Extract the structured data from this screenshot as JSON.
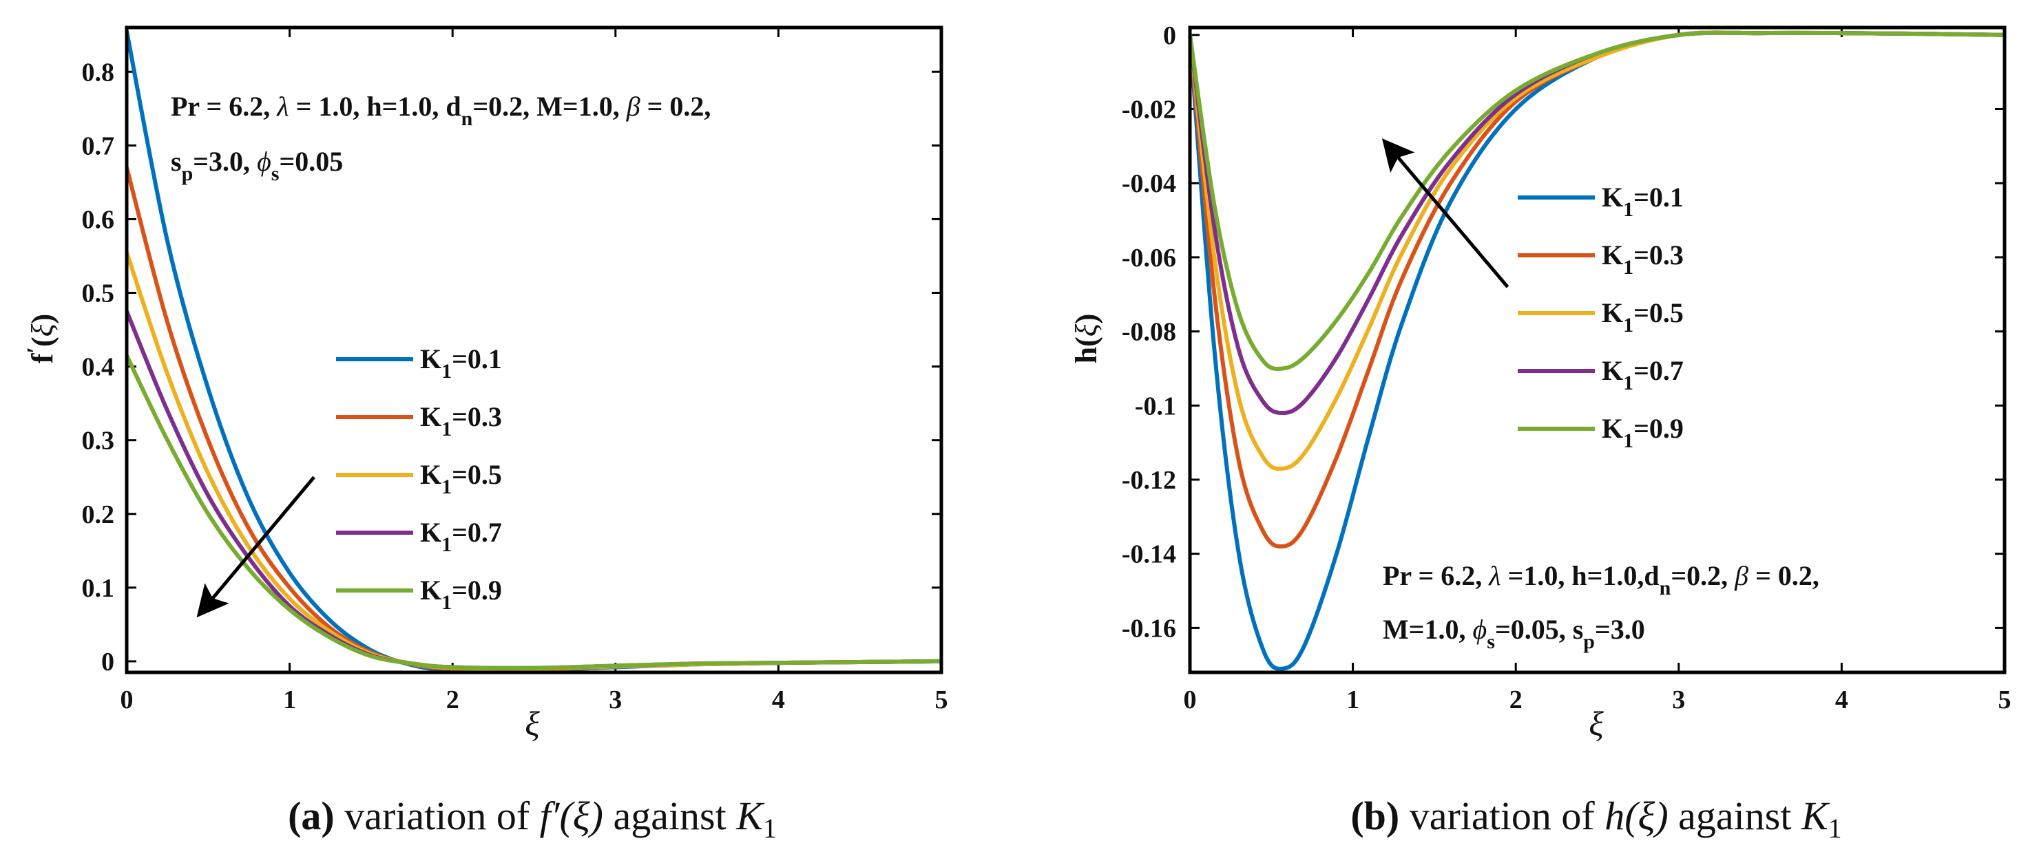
{
  "chart_data": [
    {
      "type": "line",
      "panel": "a",
      "title": "",
      "ylabel": "f'(ξ)",
      "xlabel": "ξ",
      "xlim": [
        0,
        5
      ],
      "ylim": [
        -0.015,
        0.86
      ],
      "xticks": [
        "0",
        "1",
        "2",
        "3",
        "4",
        "5"
      ],
      "yticks": [
        "0",
        "0.1",
        "0.2",
        "0.3",
        "0.4",
        "0.5",
        "0.6",
        "0.7",
        "0.8"
      ],
      "legend_position": "center",
      "legend_prefix": "K",
      "legend_subscript": "1",
      "series": [
        {
          "name": "K1=0.1",
          "value_label": "=0.1",
          "color": "#0072BD",
          "x": [
            0,
            0.25,
            0.5,
            0.75,
            1.0,
            1.25,
            1.5,
            1.75,
            2.0,
            2.5,
            3.0,
            3.5,
            4.0,
            4.5,
            5.0
          ],
          "y": [
            0.855,
            0.57,
            0.37,
            0.22,
            0.12,
            0.055,
            0.015,
            -0.005,
            -0.012,
            -0.012,
            -0.008,
            -0.004,
            -0.002,
            -0.001,
            0
          ]
        },
        {
          "name": "K1=0.3",
          "value_label": "=0.3",
          "color": "#D95319",
          "x": [
            0,
            0.25,
            0.5,
            0.75,
            1.0,
            1.25,
            1.5,
            1.75,
            2.0,
            2.5,
            3.0,
            3.5,
            4.0,
            4.5,
            5.0
          ],
          "y": [
            0.67,
            0.46,
            0.3,
            0.18,
            0.1,
            0.045,
            0.012,
            -0.004,
            -0.01,
            -0.011,
            -0.007,
            -0.004,
            -0.002,
            -0.001,
            0
          ]
        },
        {
          "name": "K1=0.5",
          "value_label": "=0.5",
          "color": "#EDB120",
          "x": [
            0,
            0.25,
            0.5,
            0.75,
            1.0,
            1.25,
            1.5,
            1.75,
            2.0,
            2.5,
            3.0,
            3.5,
            4.0,
            4.5,
            5.0
          ],
          "y": [
            0.555,
            0.39,
            0.255,
            0.155,
            0.085,
            0.04,
            0.01,
            -0.003,
            -0.009,
            -0.01,
            -0.007,
            -0.004,
            -0.002,
            -0.001,
            0
          ]
        },
        {
          "name": "K1=0.7",
          "value_label": "=0.7",
          "color": "#7E2F8E",
          "x": [
            0,
            0.25,
            0.5,
            0.75,
            1.0,
            1.25,
            1.5,
            1.75,
            2.0,
            2.5,
            3.0,
            3.5,
            4.0,
            4.5,
            5.0
          ],
          "y": [
            0.475,
            0.34,
            0.225,
            0.14,
            0.075,
            0.035,
            0.008,
            -0.003,
            -0.008,
            -0.009,
            -0.006,
            -0.003,
            -0.002,
            -0.001,
            0
          ]
        },
        {
          "name": "K1=0.9",
          "value_label": "=0.9",
          "color": "#77AC30",
          "x": [
            0,
            0.25,
            0.5,
            0.75,
            1.0,
            1.25,
            1.5,
            1.75,
            2.0,
            2.5,
            3.0,
            3.5,
            4.0,
            4.5,
            5.0
          ],
          "y": [
            0.415,
            0.3,
            0.2,
            0.125,
            0.07,
            0.032,
            0.007,
            -0.003,
            -0.008,
            -0.009,
            -0.006,
            -0.003,
            -0.002,
            -0.001,
            0
          ]
        }
      ],
      "annotation": {
        "line1": {
          "a": "Pr = 6.2,  ",
          "b": "λ",
          "c": " = 1.0, h=1.0, d",
          "d": "n",
          "e": "=0.2, M=1.0, ",
          "f": "β",
          "g": " = 0.2,"
        },
        "line2": {
          "a": "s",
          "b": "p",
          "c": "=3.0, ",
          "d": "ϕ",
          "e": "s",
          "f": "=0.05"
        }
      },
      "arrow": {
        "from": [
          1.15,
          0.25
        ],
        "to": [
          0.45,
          0.065
        ]
      },
      "caption": {
        "letter": "(a)",
        "text": " variation of ",
        "math": "f′(ξ)",
        "text2": " against ",
        "math2": "K",
        "sub": "1"
      }
    },
    {
      "type": "line",
      "panel": "b",
      "title": "",
      "ylabel": "h(ξ)",
      "xlabel": "ξ",
      "xlim": [
        0,
        5
      ],
      "ylim": [
        -0.172,
        0.002
      ],
      "xticks": [
        "0",
        "1",
        "2",
        "3",
        "4",
        "5"
      ],
      "yticks": [
        "0",
        "-0.02",
        "-0.04",
        "-0.06",
        "-0.08",
        "-0.1",
        "-0.12",
        "-0.14",
        "-0.16"
      ],
      "legend_position": "upper center-right",
      "legend_prefix": "K",
      "legend_subscript": "1",
      "series": [
        {
          "name": "K1=0.1",
          "value_label": "=0.1",
          "color": "#0072BD",
          "x": [
            0,
            0.15,
            0.3,
            0.45,
            0.57,
            0.7,
            0.9,
            1.1,
            1.3,
            1.6,
            2.0,
            2.5,
            3.0,
            3.5,
            4.0,
            4.5,
            5.0
          ],
          "y": [
            0,
            -0.085,
            -0.14,
            -0.166,
            -0.171,
            -0.165,
            -0.14,
            -0.108,
            -0.078,
            -0.045,
            -0.02,
            -0.006,
            0,
            0.0005,
            0.0005,
            0.0003,
            0
          ]
        },
        {
          "name": "K1=0.3",
          "value_label": "=0.3",
          "color": "#D95319",
          "x": [
            0,
            0.15,
            0.3,
            0.45,
            0.57,
            0.7,
            0.9,
            1.1,
            1.3,
            1.6,
            2.0,
            2.5,
            3.0,
            3.5,
            4.0,
            4.5,
            5.0
          ],
          "y": [
            0,
            -0.07,
            -0.115,
            -0.134,
            -0.138,
            -0.133,
            -0.114,
            -0.09,
            -0.066,
            -0.04,
            -0.018,
            -0.006,
            0,
            0.0005,
            0.0005,
            0.0003,
            0
          ]
        },
        {
          "name": "K1=0.5",
          "value_label": "=0.5",
          "color": "#EDB120",
          "x": [
            0,
            0.15,
            0.3,
            0.45,
            0.57,
            0.7,
            0.9,
            1.1,
            1.3,
            1.6,
            2.0,
            2.5,
            3.0,
            3.5,
            4.0,
            4.5,
            5.0
          ],
          "y": [
            0,
            -0.06,
            -0.098,
            -0.114,
            -0.117,
            -0.113,
            -0.098,
            -0.079,
            -0.059,
            -0.036,
            -0.017,
            -0.006,
            0,
            0.0005,
            0.0005,
            0.0003,
            0
          ]
        },
        {
          "name": "K1=0.7",
          "value_label": "=0.7",
          "color": "#7E2F8E",
          "x": [
            0,
            0.15,
            0.3,
            0.45,
            0.57,
            0.7,
            0.9,
            1.1,
            1.3,
            1.6,
            2.0,
            2.5,
            3.0,
            3.5,
            4.0,
            4.5,
            5.0
          ],
          "y": [
            0,
            -0.052,
            -0.085,
            -0.099,
            -0.102,
            -0.099,
            -0.087,
            -0.071,
            -0.054,
            -0.034,
            -0.016,
            -0.005,
            0,
            0.0005,
            0.0005,
            0.0003,
            0
          ]
        },
        {
          "name": "K1=0.9",
          "value_label": "=0.9",
          "color": "#77AC30",
          "x": [
            0,
            0.15,
            0.3,
            0.45,
            0.57,
            0.7,
            0.9,
            1.1,
            1.3,
            1.6,
            2.0,
            2.5,
            3.0,
            3.5,
            4.0,
            4.5,
            5.0
          ],
          "y": [
            0,
            -0.046,
            -0.075,
            -0.088,
            -0.09,
            -0.087,
            -0.077,
            -0.064,
            -0.049,
            -0.031,
            -0.015,
            -0.005,
            0,
            0.0005,
            0.0005,
            0.0003,
            0
          ]
        }
      ],
      "annotation": {
        "line1": {
          "a": "Pr = 6.2,  ",
          "b": "λ",
          "c": " =1.0, h=1.0,d",
          "d": "n",
          "e": "=0.2, ",
          "f": "β",
          "g": " = 0.2,"
        },
        "line2": {
          "a": "M=1.0, ",
          "b": "ϕ",
          "c": "s",
          "d": "=0.05, s",
          "e": "p",
          "f": "=3.0"
        }
      },
      "arrow": {
        "from": [
          1.95,
          -0.068
        ],
        "to": [
          1.2,
          -0.029
        ]
      },
      "caption": {
        "letter": "(b)",
        "text": " variation of ",
        "math": "h(ξ)",
        "text2": " against ",
        "math2": "K",
        "sub": "1"
      }
    }
  ]
}
